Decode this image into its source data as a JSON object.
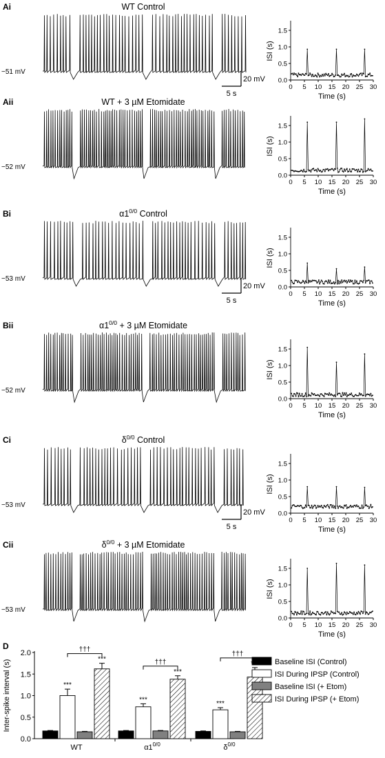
{
  "panels": [
    {
      "label": "Ai",
      "title_pre": "WT Control",
      "title_sup": "",
      "title_post": "",
      "baseline": "−51 mV",
      "scale": true,
      "ramp": 0.9,
      "peaks": [
        0.93,
        0.93,
        0.93
      ],
      "base": 0.15
    },
    {
      "label": "Aii",
      "title_pre": "WT + 3 ",
      "title_sup": "",
      "title_post": "µM Etomidate",
      "baseline": "−52 mV",
      "scale": false,
      "ramp": 1.8,
      "peaks": [
        1.6,
        1.6,
        1.7
      ],
      "base": 0.15
    },
    {
      "label": "Bi",
      "title_pre": "α1",
      "title_sup": "0/0",
      "title_post": " Control",
      "baseline": "−53 mV",
      "scale": true,
      "ramp": 0.9,
      "peaks": [
        0.72,
        0.55,
        0.6
      ],
      "base": 0.15
    },
    {
      "label": "Bii",
      "title_pre": "α1",
      "title_sup": "0/0",
      "title_post": " + 3 µM Etomidate",
      "baseline": "−52 mV",
      "scale": false,
      "ramp": 1.8,
      "peaks": [
        1.55,
        1.1,
        1.35
      ],
      "base": 0.12
    },
    {
      "label": "Ci",
      "title_pre": "δ",
      "title_sup": "0/0",
      "title_post": " Control",
      "baseline": "−53 mV",
      "scale": true,
      "ramp": 0.9,
      "peaks": [
        0.8,
        0.8,
        0.78
      ],
      "base": 0.2
    },
    {
      "label": "Cii",
      "title_pre": "δ",
      "title_sup": "0/0",
      "title_post": " + 3 µM Etomidate",
      "baseline": "−53 mV",
      "scale": false,
      "ramp": 1.8,
      "peaks": [
        1.5,
        1.65,
        1.6
      ],
      "base": 0.15
    }
  ],
  "scalebar": {
    "voltage": "20 mV",
    "time": "5 s"
  },
  "isi_plot": {
    "ylabel": "ISI (s)",
    "xlabel": "Time (s)",
    "yticks": [
      "0.0",
      "0.5",
      "1.0",
      "1.5"
    ],
    "xticks": [
      "0",
      "5",
      "10",
      "15",
      "20",
      "25",
      "30"
    ],
    "peak_times": [
      6,
      16.5,
      27
    ]
  },
  "bar_panel_label": "D",
  "chart_data": {
    "type": "bar",
    "ylabel": "Inter-spike interval (s)",
    "ylim": [
      0,
      2.0
    ],
    "yticks": [
      "0.0",
      "0.5",
      "1.0",
      "1.5",
      "2.0"
    ],
    "categories": [
      "WT",
      "α1",
      "δ"
    ],
    "category_sup": [
      "",
      "0/0",
      "0/0"
    ],
    "series": [
      {
        "name": "Baseline ISI (Control)",
        "values": [
          0.18,
          0.18,
          0.17
        ],
        "errors": [
          0.01,
          0.01,
          0.01
        ],
        "stars": [
          "",
          "",
          ""
        ]
      },
      {
        "name": "ISI During IPSP (Control)",
        "values": [
          1.0,
          0.74,
          0.67
        ],
        "errors": [
          0.15,
          0.07,
          0.05
        ],
        "stars": [
          "***",
          "***",
          "***"
        ]
      },
      {
        "name": "Baseline ISI (+ Etom)",
        "values": [
          0.16,
          0.18,
          0.16
        ],
        "errors": [
          0.01,
          0.01,
          0.01
        ],
        "stars": [
          "",
          "",
          ""
        ]
      },
      {
        "name": "ISI During IPSP (+ Etom)",
        "values": [
          1.62,
          1.38,
          1.43
        ],
        "errors": [
          0.13,
          0.08,
          0.22
        ],
        "stars": [
          "***",
          "***",
          "***"
        ]
      }
    ],
    "dagger": "†††",
    "fills": [
      "#000000",
      "#ffffff",
      "#808080",
      "hatch"
    ]
  }
}
